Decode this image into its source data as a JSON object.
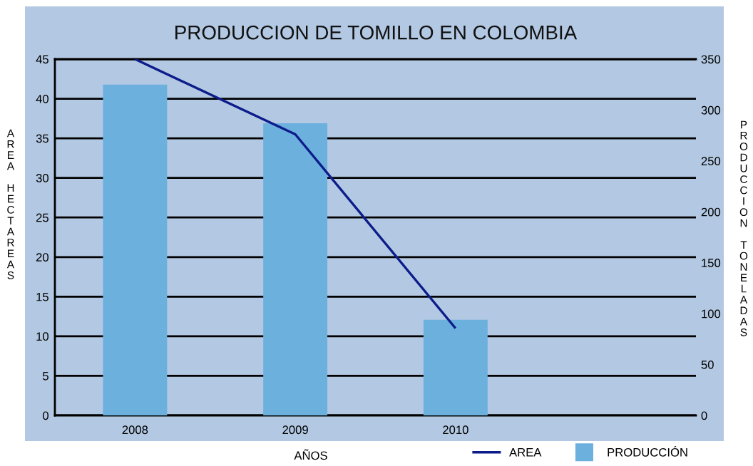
{
  "chart_data": {
    "type": "bar",
    "title": "PRODUCCION DE TOMILLO EN COLOMBIA",
    "xlabel": "AÑOS",
    "ylabel": "AREA HECTAREAS",
    "y2label": "PRODUCCION TONELADAS",
    "categories": [
      "2008",
      "2009",
      "2010",
      null
    ],
    "series": [
      {
        "name": "AREA",
        "type": "line",
        "color": "#0c1c8a",
        "values": [
          45,
          35.5,
          11,
          null
        ]
      },
      {
        "name": "PRODUCCIÓN",
        "axis": "y2",
        "color": "#6cb0de",
        "values": [
          325,
          287,
          94,
          null
        ]
      }
    ],
    "ylim": [
      0,
      45
    ],
    "yticks": [
      0,
      5,
      10,
      15,
      20,
      25,
      30,
      35,
      40,
      45
    ],
    "y2lim": [
      0,
      350
    ],
    "y2ticks": [
      0,
      50,
      100,
      150,
      200,
      250,
      300,
      350
    ],
    "grid": "y",
    "legend": "bottom right"
  }
}
